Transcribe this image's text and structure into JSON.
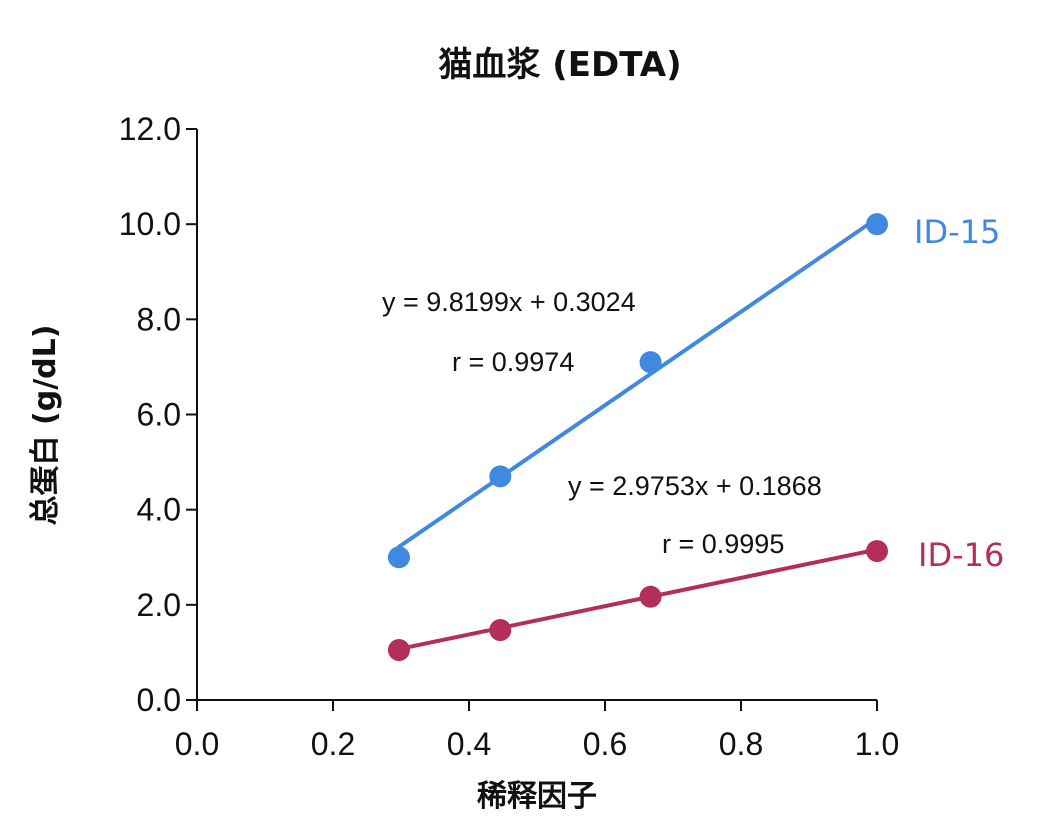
{
  "chart_data": {
    "type": "scatter",
    "title": "猫血浆 (EDTA)",
    "xlabel": "稀释因子",
    "ylabel": "总蛋白 (g/dL)",
    "xlim": [
      0.0,
      1.0
    ],
    "ylim": [
      0.0,
      12.0
    ],
    "x_ticks": [
      "0.0",
      "0.2",
      "0.4",
      "0.6",
      "0.8",
      "1.0"
    ],
    "y_ticks": [
      "0.0",
      "2.0",
      "4.0",
      "6.0",
      "8.0",
      "10.0",
      "12.0"
    ],
    "grid": false,
    "series": [
      {
        "name": "ID-15",
        "color": "#4189e0",
        "x": [
          0.297,
          0.446,
          0.667,
          1.0
        ],
        "y": [
          3.0,
          4.7,
          7.1,
          10.0
        ],
        "trendline": {
          "slope": 9.8199,
          "intercept": 0.3024
        },
        "equation": "y = 9.8199x + 0.3024",
        "r_label": "r = 0.9974"
      },
      {
        "name": "ID-16",
        "color": "#b32f5a",
        "x": [
          0.297,
          0.446,
          0.667,
          1.0
        ],
        "y": [
          1.05,
          1.47,
          2.17,
          3.13
        ],
        "trendline": {
          "slope": 2.9753,
          "intercept": 0.1868
        },
        "equation": "y = 2.9753x + 0.1868",
        "r_label": "r = 0.9995"
      }
    ]
  }
}
